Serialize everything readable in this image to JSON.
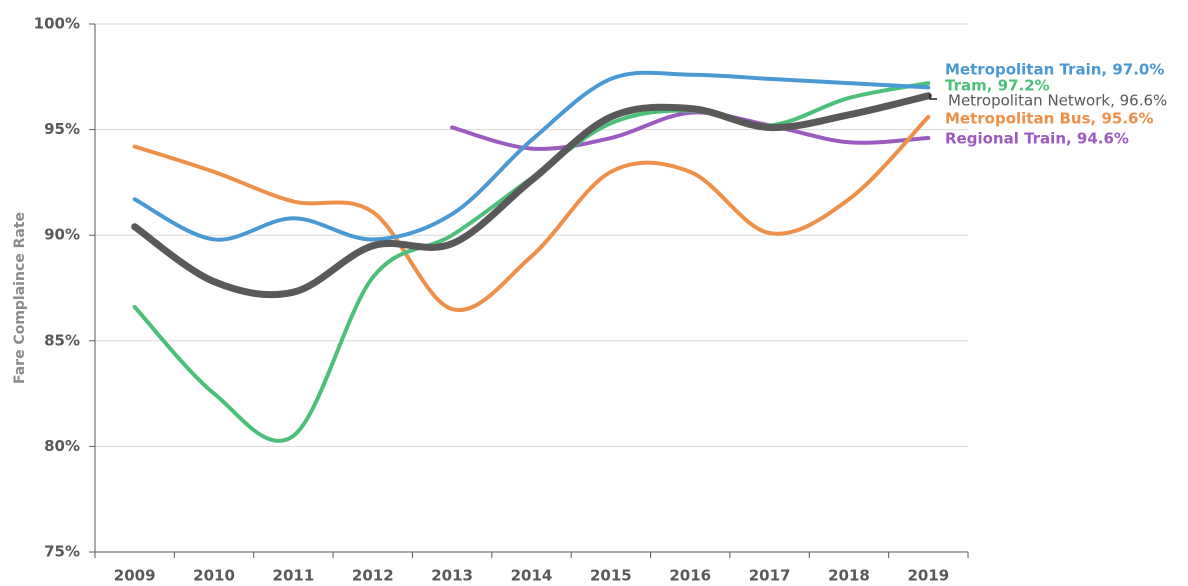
{
  "chart_data": {
    "type": "line",
    "y_label": "Fare Complaince Rate",
    "categories": [
      "2009",
      "2010",
      "2011",
      "2012",
      "2013",
      "2014",
      "2015",
      "2016",
      "2017",
      "2018",
      "2019"
    ],
    "ylim": [
      75,
      100
    ],
    "yticks": [
      {
        "value": 75,
        "label": "75%"
      },
      {
        "value": 80,
        "label": "80%"
      },
      {
        "value": 85,
        "label": "85%"
      },
      {
        "value": 90,
        "label": "90%"
      },
      {
        "value": 95,
        "label": "95%"
      },
      {
        "value": 100,
        "label": "100%"
      }
    ],
    "grid": true,
    "series": [
      {
        "name": "Regional Train, 94.6%",
        "color": "#9b5bbf",
        "values": [
          null,
          null,
          null,
          null,
          95.1,
          94.1,
          94.6,
          95.8,
          95.2,
          94.4,
          94.6
        ]
      },
      {
        "name": "Metropolitan Bus, 95.6%",
        "color": "#ee8f4a",
        "values": [
          94.2,
          93.0,
          91.6,
          91.1,
          86.5,
          89.0,
          93.0,
          93.0,
          90.1,
          91.7,
          95.6
        ]
      },
      {
        "name": "Tram, 97.2%",
        "color": "#4cc07a",
        "values": [
          86.6,
          82.5,
          80.5,
          88.0,
          90.0,
          92.7,
          95.3,
          95.9,
          95.2,
          96.5,
          97.2
        ]
      },
      {
        "name": "Metropolitan Train, 97.0%",
        "color": "#4a98d4",
        "values": [
          91.7,
          89.8,
          90.8,
          89.8,
          91.0,
          94.5,
          97.4,
          97.6,
          97.4,
          97.2,
          97.0
        ]
      },
      {
        "name": "Metropolitan Network, 96.6%",
        "color": "#595959",
        "values": [
          90.4,
          87.8,
          87.3,
          89.5,
          89.6,
          92.6,
          95.6,
          96.0,
          95.1,
          95.7,
          96.6
        ]
      }
    ]
  }
}
